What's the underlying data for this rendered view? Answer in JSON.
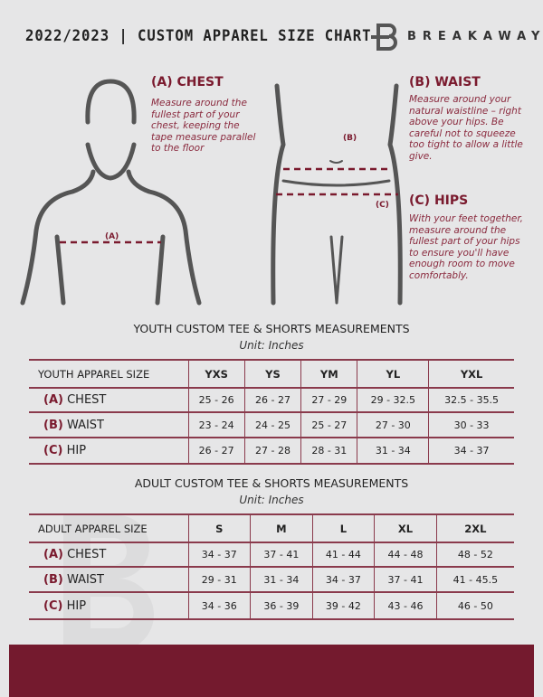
{
  "header": {
    "title": "2022/2023 | CUSTOM APPAREL SIZE CHART",
    "brand": "BREAKAWAY",
    "brand_mark": "B"
  },
  "colors": {
    "accent": "#7a1a2e",
    "background": "#e6e6e7",
    "footer": "#741a2e"
  },
  "chest": {
    "marker": "(A)",
    "heading": "(A) CHEST",
    "text": "Measure around the fullest part of your chest, keeping the tape measure parallel to the floor"
  },
  "waist": {
    "marker": "(B)",
    "heading": "(B) WAIST",
    "text": "Measure around your natural waistline – right above your hips. Be careful not to squeeze too tight to allow a little give."
  },
  "hips": {
    "marker": "(C)",
    "heading": "(C) HIPS",
    "text": "With your feet together, measure around the fullest part of your hips to ensure you'll have enough room to move comfortably."
  },
  "youth": {
    "title": "YOUTH CUSTOM TEE & SHORTS MEASUREMENTS",
    "unit": "Unit: Inches",
    "header": "YOUTH APPAREL SIZE",
    "sizes": [
      "YXS",
      "YS",
      "YM",
      "YL",
      "YXL"
    ],
    "rows": [
      {
        "tag": "(A)",
        "label": "CHEST",
        "values": [
          "25 - 26",
          "26 - 27",
          "27 - 29",
          "29 - 32.5",
          "32.5 - 35.5"
        ]
      },
      {
        "tag": "(B)",
        "label": "WAIST",
        "values": [
          "23 - 24",
          "24 - 25",
          "25 - 27",
          "27 - 30",
          "30 - 33"
        ]
      },
      {
        "tag": "(C)",
        "label": "HIP",
        "values": [
          "26 - 27",
          "27 - 28",
          "28 - 31",
          "31 - 34",
          "34 - 37"
        ]
      }
    ]
  },
  "adult": {
    "title": "ADULT CUSTOM TEE & SHORTS MEASUREMENTS",
    "unit": "Unit: Inches",
    "header": "ADULT APPAREL SIZE",
    "sizes": [
      "S",
      "M",
      "L",
      "XL",
      "2XL"
    ],
    "rows": [
      {
        "tag": "(A)",
        "label": "CHEST",
        "values": [
          "34 - 37",
          "37 - 41",
          "41 - 44",
          "44 - 48",
          "48 - 52"
        ]
      },
      {
        "tag": "(B)",
        "label": "WAIST",
        "values": [
          "29 - 31",
          "31 - 34",
          "34 - 37",
          "37 - 41",
          "41 - 45.5"
        ]
      },
      {
        "tag": "(C)",
        "label": "HIP",
        "values": [
          "34 - 36",
          "36 - 39",
          "39 - 42",
          "43 - 46",
          "46 - 50"
        ]
      }
    ]
  }
}
